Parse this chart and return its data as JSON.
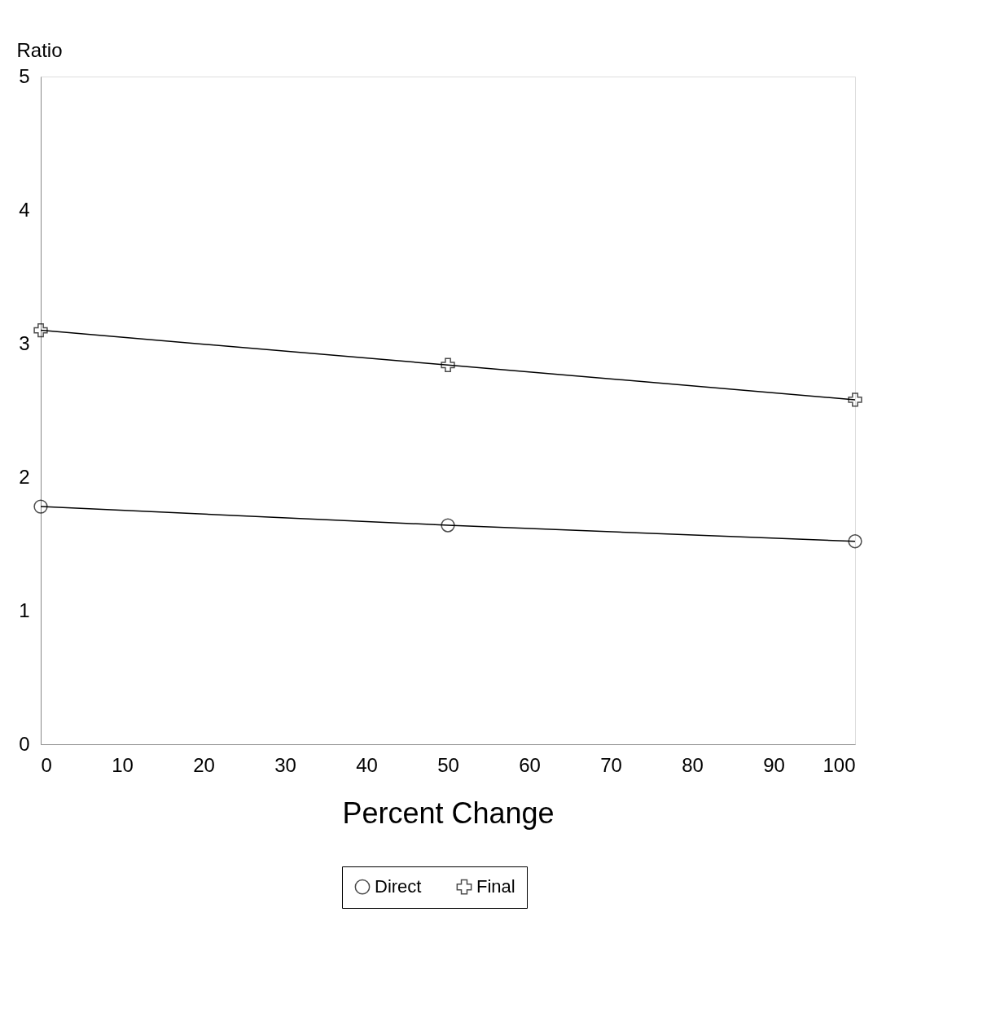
{
  "chart_data": {
    "type": "line",
    "xlabel": "Percent Change",
    "ylabel": "Ratio",
    "x": [
      0,
      50,
      100
    ],
    "series": [
      {
        "name": "Direct",
        "color": "#000000",
        "values": [
          1.78,
          1.64,
          1.52
        ],
        "marker": "circle"
      },
      {
        "name": "Final",
        "color": "#000000",
        "values": [
          3.1,
          2.84,
          2.58
        ],
        "marker": "cross"
      }
    ],
    "xlim": [
      0,
      100
    ],
    "xticks": [
      0,
      10,
      20,
      30,
      40,
      50,
      60,
      70,
      80,
      90,
      100
    ],
    "ylim": [
      0,
      5
    ],
    "yticks": [
      0,
      1,
      2,
      3,
      4,
      5
    ],
    "grid": false,
    "legend": "bottom",
    "line_style": "solid"
  }
}
